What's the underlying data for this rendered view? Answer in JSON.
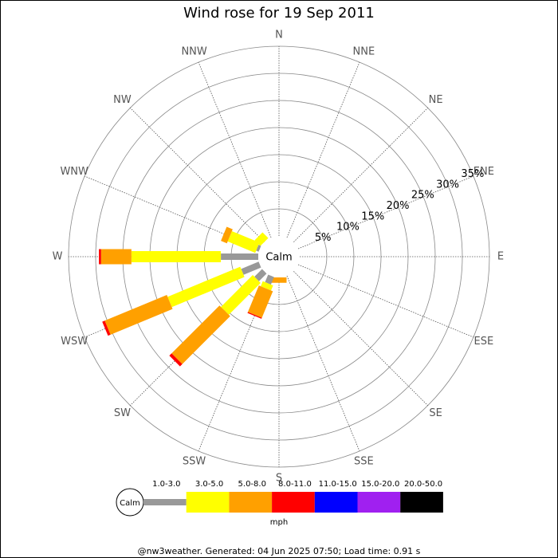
{
  "chart_data": {
    "type": "windrose",
    "title": "Wind rose for 19 Sep 2011",
    "directions": [
      "N",
      "NNE",
      "NE",
      "ENE",
      "E",
      "ESE",
      "SE",
      "SSE",
      "S",
      "SSW",
      "SW",
      "WSW",
      "W",
      "WNW",
      "NW",
      "NNW"
    ],
    "calm_label": "Calm",
    "rlim": [
      0,
      35
    ],
    "rticks": [
      {
        "value": 5,
        "label": "5%"
      },
      {
        "value": 10,
        "label": "10%"
      },
      {
        "value": 15,
        "label": "15%"
      },
      {
        "value": 20,
        "label": "20%"
      },
      {
        "value": 25,
        "label": "25%"
      },
      {
        "value": 30,
        "label": "30%"
      },
      {
        "value": 35,
        "label": "35%"
      }
    ],
    "unit": "mph",
    "series": [
      {
        "name": "1.0-3.0",
        "color": "#999999",
        "values": [
          0,
          0,
          0,
          0,
          0,
          0,
          0,
          0,
          0,
          1.5,
          2,
          3.5,
          6.9,
          0.5,
          0,
          0
        ]
      },
      {
        "name": "3.0-5.0",
        "color": "#ffff00",
        "values": [
          0,
          0,
          0,
          0,
          0,
          0,
          0,
          0,
          0,
          1,
          8.3,
          14.5,
          16.5,
          5.5,
          1.5,
          0
        ]
      },
      {
        "name": "5.0-8.0",
        "color": "#ffa000",
        "values": [
          0,
          0,
          0,
          0,
          0,
          0,
          0,
          0,
          1,
          5.3,
          12.5,
          12.4,
          5.6,
          1.2,
          0,
          0
        ]
      },
      {
        "name": "8.0-11.0",
        "color": "#ff0000",
        "values": [
          0,
          0,
          0,
          0,
          0,
          0,
          0,
          0,
          0,
          0.2,
          0.6,
          0.5,
          0.4,
          0,
          0,
          0
        ]
      },
      {
        "name": "11.0-15.0",
        "color": "#0000ff",
        "values": [
          0,
          0,
          0,
          0,
          0,
          0,
          0,
          0,
          0,
          0,
          0,
          0,
          0,
          0,
          0,
          0
        ]
      },
      {
        "name": "15.0-20.0",
        "color": "#a020f0",
        "values": [
          0,
          0,
          0,
          0,
          0,
          0,
          0,
          0,
          0,
          0,
          0,
          0,
          0,
          0,
          0,
          0
        ]
      },
      {
        "name": "20.0-50.0",
        "color": "#000000",
        "values": [
          0,
          0,
          0,
          0,
          0,
          0,
          0,
          0,
          0,
          0,
          0,
          0,
          0,
          0,
          0,
          0
        ]
      }
    ]
  },
  "footer": "@nw3weather. Generated: 04 Jun 2025 07:50; Load time: 0.91 s"
}
